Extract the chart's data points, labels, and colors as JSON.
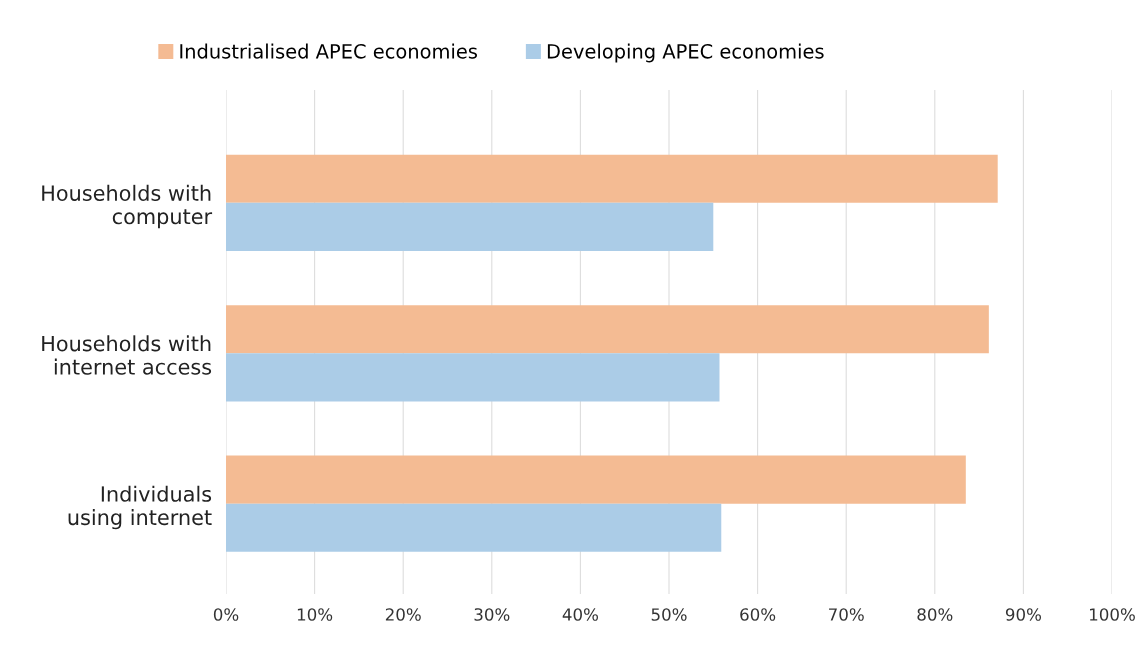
{
  "chart_data": {
    "type": "bar",
    "orientation": "horizontal",
    "categories": [
      "Households with\ncomputer",
      "Households with\ninternet access",
      "Individuals\nusing internet"
    ],
    "series": [
      {
        "name": "Industrialised APEC economies",
        "color": "#f4bb93",
        "values": [
          87.1,
          86.1,
          83.5
        ]
      },
      {
        "name": "Developing APEC economies",
        "color": "#abcce7",
        "values": [
          55.0,
          55.7,
          55.9
        ]
      }
    ],
    "xlim": [
      0,
      100
    ],
    "xticks": [
      {
        "value": 0,
        "label": "0%"
      },
      {
        "value": 10,
        "label": "10%"
      },
      {
        "value": 20,
        "label": "20%"
      },
      {
        "value": 30,
        "label": "30%"
      },
      {
        "value": 40,
        "label": "40%"
      },
      {
        "value": 50,
        "label": "50%"
      },
      {
        "value": 60,
        "label": "60%"
      },
      {
        "value": 70,
        "label": "70%"
      },
      {
        "value": 80,
        "label": "80%"
      },
      {
        "value": 90,
        "label": "90%"
      },
      {
        "value": 100,
        "label": "100%"
      }
    ],
    "grid": "x",
    "legend": "top"
  }
}
